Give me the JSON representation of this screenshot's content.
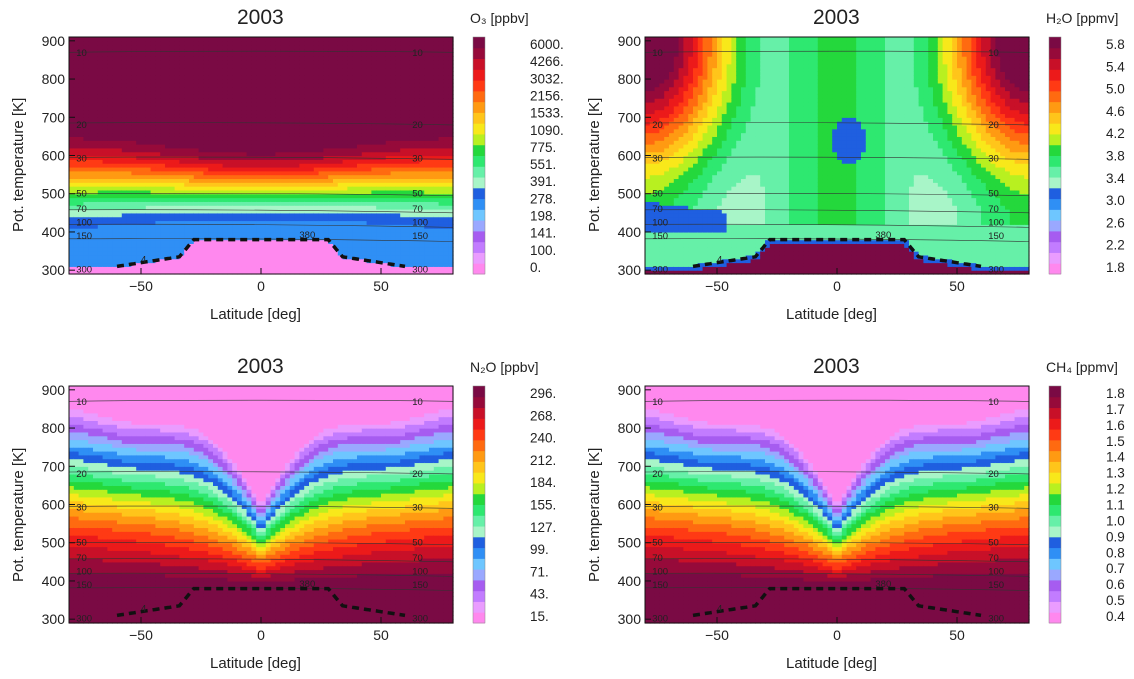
{
  "chart_data": [
    {
      "type": "heatmap",
      "title": "2003",
      "species": "O3",
      "colorbar_title": "O₃ [ppbv]",
      "xlabel": "Latitude [deg]",
      "ylabel": "Pot. temperature [K]",
      "xlim": [
        -80,
        80
      ],
      "ylim": [
        290,
        910
      ],
      "x_ticks": [
        "-50",
        "0",
        "50"
      ],
      "y_ticks": [
        "300",
        "400",
        "500",
        "600",
        "700",
        "800",
        "900"
      ],
      "colorbar_ticks": [
        "6000.",
        "4266.",
        "3032.",
        "2156.",
        "1533.",
        "1090.",
        "775.",
        "551.",
        "391.",
        "278.",
        "198.",
        "141.",
        "100.",
        "0."
      ],
      "profile": "ozone",
      "pressure_labels": [
        "10",
        "20",
        "30",
        "50",
        "70",
        "100",
        "150",
        "300"
      ],
      "pressure_labels_right": [
        "10",
        "20",
        "30",
        "50",
        "70",
        "100",
        "150",
        "300"
      ],
      "annotations": [
        "380",
        "4"
      ]
    },
    {
      "type": "heatmap",
      "title": "2003",
      "species": "H2O",
      "colorbar_title": "H₂O [ppmv]",
      "xlabel": "Latitude [deg]",
      "ylabel": "Pot. temperature [K]",
      "xlim": [
        -80,
        80
      ],
      "ylim": [
        290,
        910
      ],
      "x_ticks": [
        "-50",
        "0",
        "50"
      ],
      "y_ticks": [
        "300",
        "400",
        "500",
        "600",
        "700",
        "800",
        "900"
      ],
      "colorbar_ticks": [
        "5.8",
        "5.4",
        "5.0",
        "4.6",
        "4.2",
        "3.8",
        "3.4",
        "3.0",
        "2.6",
        "2.2",
        "1.8"
      ],
      "profile": "water",
      "pressure_labels": [
        "10",
        "20",
        "30",
        "50",
        "70",
        "100",
        "150",
        "300"
      ],
      "pressure_labels_right": [
        "10",
        "20",
        "30",
        "50",
        "70",
        "100",
        "150",
        "300"
      ],
      "annotations": [
        "380",
        "4"
      ]
    },
    {
      "type": "heatmap",
      "title": "2003",
      "species": "N2O",
      "colorbar_title": "N₂O [ppbv]",
      "xlabel": "Latitude [deg]",
      "ylabel": "Pot. temperature [K]",
      "xlim": [
        -80,
        80
      ],
      "ylim": [
        290,
        910
      ],
      "x_ticks": [
        "-50",
        "0",
        "50"
      ],
      "y_ticks": [
        "300",
        "400",
        "500",
        "600",
        "700",
        "800",
        "900"
      ],
      "colorbar_ticks": [
        "296.",
        "268.",
        "240.",
        "212.",
        "184.",
        "155.",
        "127.",
        "99.",
        "71.",
        "43.",
        "15."
      ],
      "profile": "tracer",
      "pressure_labels": [
        "10",
        "20",
        "30",
        "50",
        "70",
        "100",
        "150",
        "300"
      ],
      "pressure_labels_right": [
        "10",
        "20",
        "30",
        "50",
        "70",
        "100",
        "150",
        "300"
      ],
      "annotations": [
        "380",
        "4"
      ]
    },
    {
      "type": "heatmap",
      "title": "2003",
      "species": "CH4",
      "colorbar_title": "CH₄ [ppmv]",
      "xlabel": "Latitude [deg]",
      "ylabel": "Pot. temperature [K]",
      "xlim": [
        -80,
        80
      ],
      "ylim": [
        290,
        910
      ],
      "x_ticks": [
        "-50",
        "0",
        "50"
      ],
      "y_ticks": [
        "300",
        "400",
        "500",
        "600",
        "700",
        "800",
        "900"
      ],
      "colorbar_ticks": [
        "1.8",
        "1.7",
        "1.6",
        "1.5",
        "1.4",
        "1.3",
        "1.2",
        "1.1",
        "1.0",
        "0.9",
        "0.8",
        "0.7",
        "0.6",
        "0.5",
        "0.4"
      ],
      "profile": "tracer",
      "pressure_labels": [
        "10",
        "20",
        "30",
        "50",
        "70",
        "100",
        "150",
        "300"
      ],
      "pressure_labels_right": [
        "10",
        "20",
        "30",
        "50",
        "70",
        "100",
        "150",
        "300"
      ],
      "annotations": [
        "380",
        "4"
      ]
    }
  ],
  "colors": {
    "palette": [
      "#ff88ee",
      "#ea9cff",
      "#c27cff",
      "#a65cf0",
      "#9aa8ff",
      "#6ec6ff",
      "#2f8ff5",
      "#1f5fe0",
      "#a8f5c8",
      "#66f0a8",
      "#2ee870",
      "#24d83c",
      "#b8f020",
      "#f8e81a",
      "#ffc51a",
      "#ff9a12",
      "#ff6a10",
      "#ff3a14",
      "#ec1a1a",
      "#c81028",
      "#960a3a",
      "#7a0a44"
    ],
    "tropopause": "#111111"
  }
}
